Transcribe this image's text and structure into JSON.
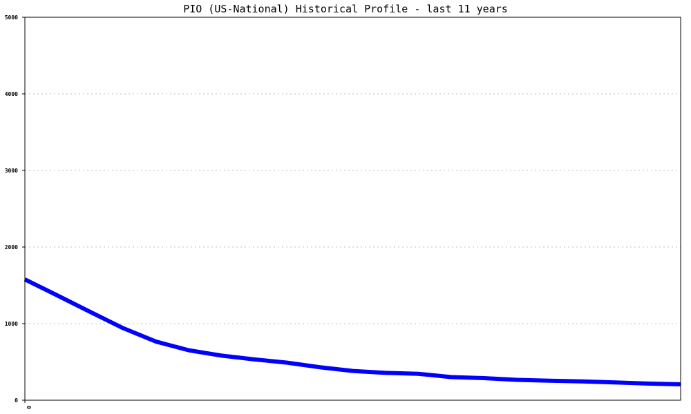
{
  "chart_data": {
    "type": "line",
    "title": "PIO (US-National) Historical Profile - last 11 years",
    "xlabel": "",
    "ylabel": "",
    "ylim": [
      0,
      5000
    ],
    "yticks": [
      0,
      1000,
      2000,
      3000,
      4000,
      5000
    ],
    "xtick_labels": [
      "0"
    ],
    "grid": true,
    "line_color": "#0000ff",
    "series": [
      {
        "values": [
          1577,
          1366,
          1151,
          940,
          765,
          652,
          582,
          533,
          490,
          430,
          382,
          357,
          345,
          302,
          288,
          266,
          255,
          246,
          232,
          217,
          207
        ]
      }
    ]
  }
}
